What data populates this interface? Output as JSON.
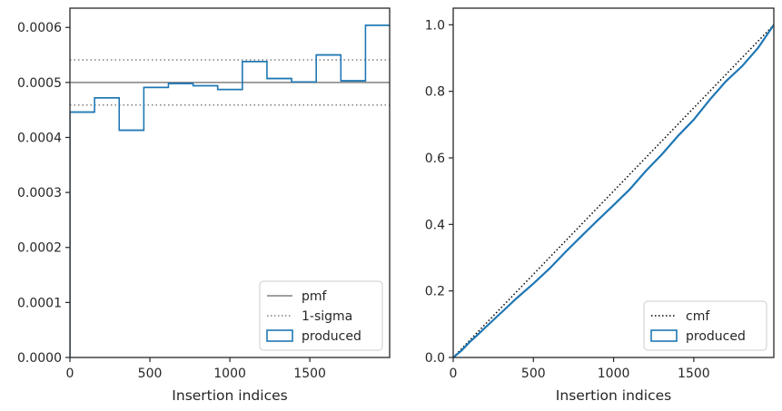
{
  "chart_data": [
    {
      "type": "histogram",
      "title": "",
      "xlabel": "Insertion indices",
      "ylabel": "",
      "xlim": [
        0,
        1999
      ],
      "ylim": [
        0,
        0.000635
      ],
      "xticks": [
        0,
        500,
        1000,
        1500
      ],
      "xtick_labels": [
        "0",
        "500",
        "1000",
        "1500"
      ],
      "yticks": [
        0,
        0.0001,
        0.0002,
        0.0003,
        0.0004,
        0.0005,
        0.0006
      ],
      "ytick_labels": [
        "0.0000",
        "0.0001",
        "0.0002",
        "0.0003",
        "0.0004",
        "0.0005",
        "0.0006"
      ],
      "grid": false,
      "legend_position": "lower-right",
      "series": [
        {
          "name": "pmf",
          "kind": "hline",
          "y": 0.0005,
          "color": "#808080",
          "style": "solid"
        },
        {
          "name": "1-sigma",
          "kind": "hlines",
          "y": [
            0.000459,
            0.000541
          ],
          "color": "#808080",
          "style": "dotted"
        },
        {
          "name": "produced",
          "kind": "step-histogram",
          "color": "#1f77b4",
          "bin_edges": [
            0,
            154,
            308,
            462,
            616,
            770,
            924,
            1078,
            1232,
            1386,
            1540,
            1694,
            1848,
            1999
          ],
          "values": [
            0.000446,
            0.000472,
            0.000413,
            0.000491,
            0.000498,
            0.000494,
            0.000487,
            0.000538,
            0.000507,
            0.000501,
            0.00055,
            0.000503,
            0.000604
          ]
        }
      ]
    },
    {
      "type": "line",
      "title": "",
      "xlabel": "Insertion indices",
      "ylabel": "",
      "xlim": [
        0,
        1999
      ],
      "ylim": [
        0,
        1.05
      ],
      "xticks": [
        0,
        500,
        1000,
        1500
      ],
      "xtick_labels": [
        "0",
        "500",
        "1000",
        "1500"
      ],
      "yticks": [
        0,
        0.2,
        0.4,
        0.6,
        0.8,
        1.0
      ],
      "ytick_labels": [
        "0.0",
        "0.2",
        "0.4",
        "0.6",
        "0.8",
        "1.0"
      ],
      "grid": false,
      "legend_position": "lower-right",
      "series": [
        {
          "name": "cmf",
          "kind": "line",
          "color": "#000000",
          "style": "dotted",
          "x": [
            0,
            1999
          ],
          "y": [
            0,
            1.0
          ]
        },
        {
          "name": "produced",
          "kind": "step-line",
          "color": "#1f77b4",
          "x": [
            0,
            50,
            100,
            150,
            200,
            300,
            400,
            500,
            600,
            700,
            800,
            900,
            1000,
            1100,
            1200,
            1300,
            1400,
            1500,
            1600,
            1700,
            1800,
            1900,
            1999
          ],
          "y": [
            0,
            0.02,
            0.045,
            0.067,
            0.09,
            0.135,
            0.18,
            0.222,
            0.267,
            0.317,
            0.365,
            0.412,
            0.458,
            0.505,
            0.56,
            0.61,
            0.665,
            0.715,
            0.775,
            0.83,
            0.875,
            0.93,
            1.0
          ]
        }
      ]
    }
  ]
}
